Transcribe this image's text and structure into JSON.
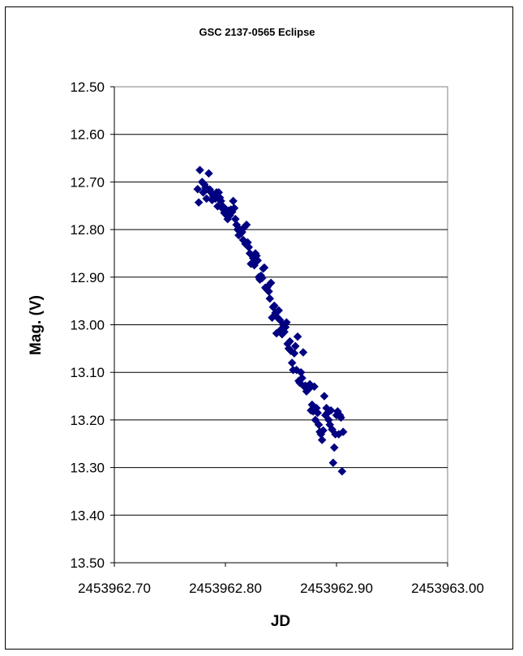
{
  "chart_data": {
    "type": "scatter",
    "title": "GSC 2137-0565 Eclipse",
    "xlabel": "JD",
    "ylabel": "Mag. (V)",
    "xlim": [
      2453962.7,
      2453963.0
    ],
    "ylim": [
      12.5,
      13.5
    ],
    "y_inverted": true,
    "grid": "horizontal major",
    "legend": "none",
    "marker": "diamond",
    "marker_color": "#000080",
    "xticks": [
      "2453962.70",
      "2453962.80",
      "2453962.90",
      "2453963.00"
    ],
    "yticks": [
      "12.50",
      "12.60",
      "12.70",
      "12.80",
      "12.90",
      "13.00",
      "13.10",
      "13.20",
      "13.30",
      "13.40",
      "13.50"
    ],
    "points": [
      [
        2453962.775,
        12.715
      ],
      [
        2453962.776,
        12.743
      ],
      [
        2453962.777,
        12.675
      ],
      [
        2453962.779,
        12.7
      ],
      [
        2453962.78,
        12.722
      ],
      [
        2453962.781,
        12.705
      ],
      [
        2453962.782,
        12.712
      ],
      [
        2453962.783,
        12.735
      ],
      [
        2453962.784,
        12.715
      ],
      [
        2453962.785,
        12.682
      ],
      [
        2453962.786,
        12.716
      ],
      [
        2453962.787,
        12.722
      ],
      [
        2453962.788,
        12.738
      ],
      [
        2453962.789,
        12.73
      ],
      [
        2453962.79,
        12.727
      ],
      [
        2453962.791,
        12.735
      ],
      [
        2453962.792,
        12.722
      ],
      [
        2453962.793,
        12.751
      ],
      [
        2453962.794,
        12.722
      ],
      [
        2453962.795,
        12.733
      ],
      [
        2453962.796,
        12.74
      ],
      [
        2453962.797,
        12.755
      ],
      [
        2453962.798,
        12.752
      ],
      [
        2453962.799,
        12.765
      ],
      [
        2453962.8,
        12.757
      ],
      [
        2453962.801,
        12.77
      ],
      [
        2453962.802,
        12.778
      ],
      [
        2453962.803,
        12.76
      ],
      [
        2453962.804,
        12.77
      ],
      [
        2453962.805,
        12.758
      ],
      [
        2453962.806,
        12.763
      ],
      [
        2453962.807,
        12.74
      ],
      [
        2453962.808,
        12.755
      ],
      [
        2453962.809,
        12.778
      ],
      [
        2453962.81,
        12.79
      ],
      [
        2453962.811,
        12.8
      ],
      [
        2453962.812,
        12.812
      ],
      [
        2453962.813,
        12.8
      ],
      [
        2453962.814,
        12.808
      ],
      [
        2453962.815,
        12.805
      ],
      [
        2453962.816,
        12.822
      ],
      [
        2453962.817,
        12.795
      ],
      [
        2453962.818,
        12.83
      ],
      [
        2453962.819,
        12.79
      ],
      [
        2453962.82,
        12.827
      ],
      [
        2453962.821,
        12.837
      ],
      [
        2453962.822,
        12.85
      ],
      [
        2453962.823,
        12.872
      ],
      [
        2453962.824,
        12.87
      ],
      [
        2453962.825,
        12.86
      ],
      [
        2453962.826,
        12.875
      ],
      [
        2453962.827,
        12.85
      ],
      [
        2453962.828,
        12.855
      ],
      [
        2453962.829,
        12.865
      ],
      [
        2453962.83,
        12.9
      ],
      [
        2453962.831,
        12.905
      ],
      [
        2453962.832,
        12.897
      ],
      [
        2453962.833,
        12.902
      ],
      [
        2453962.834,
        12.882
      ],
      [
        2453962.835,
        12.88
      ],
      [
        2453962.836,
        12.922
      ],
      [
        2453962.837,
        12.925
      ],
      [
        2453962.838,
        12.92
      ],
      [
        2453962.839,
        12.93
      ],
      [
        2453962.84,
        12.945
      ],
      [
        2453962.841,
        12.912
      ],
      [
        2453962.842,
        12.985
      ],
      [
        2453962.843,
        12.963
      ],
      [
        2453962.844,
        12.96
      ],
      [
        2453962.845,
        12.975
      ],
      [
        2453962.846,
        13.018
      ],
      [
        2453962.847,
        12.985
      ],
      [
        2453962.848,
        12.97
      ],
      [
        2453962.849,
        12.99
      ],
      [
        2453962.85,
        13.01
      ],
      [
        2453962.851,
        13.02
      ],
      [
        2453962.852,
        13.0
      ],
      [
        2453962.853,
        13.015
      ],
      [
        2453962.854,
        13.005
      ],
      [
        2453962.855,
        12.995
      ],
      [
        2453962.856,
        13.04
      ],
      [
        2453962.857,
        13.05
      ],
      [
        2453962.858,
        13.035
      ],
      [
        2453962.859,
        13.055
      ],
      [
        2453962.86,
        13.08
      ],
      [
        2453962.861,
        13.095
      ],
      [
        2453962.862,
        13.06
      ],
      [
        2453962.863,
        13.045
      ],
      [
        2453962.864,
        13.095
      ],
      [
        2453962.865,
        13.025
      ],
      [
        2453962.866,
        13.118
      ],
      [
        2453962.867,
        13.122
      ],
      [
        2453962.868,
        13.1
      ],
      [
        2453962.869,
        13.112
      ],
      [
        2453962.87,
        13.058
      ],
      [
        2453962.871,
        13.13
      ],
      [
        2453962.872,
        13.128
      ],
      [
        2453962.873,
        13.14
      ],
      [
        2453962.874,
        13.13
      ],
      [
        2453962.875,
        13.135
      ],
      [
        2453962.876,
        13.125
      ],
      [
        2453962.877,
        13.18
      ],
      [
        2453962.878,
        13.168
      ],
      [
        2453962.879,
        13.182
      ],
      [
        2453962.88,
        13.13
      ],
      [
        2453962.881,
        13.2
      ],
      [
        2453962.882,
        13.175
      ],
      [
        2453962.883,
        13.185
      ],
      [
        2453962.884,
        13.21
      ],
      [
        2453962.885,
        13.225
      ],
      [
        2453962.886,
        13.23
      ],
      [
        2453962.887,
        13.242
      ],
      [
        2453962.888,
        13.222
      ],
      [
        2453962.889,
        13.15
      ],
      [
        2453962.89,
        13.19
      ],
      [
        2453962.891,
        13.175
      ],
      [
        2453962.892,
        13.185
      ],
      [
        2453962.893,
        13.2
      ],
      [
        2453962.894,
        13.21
      ],
      [
        2453962.895,
        13.18
      ],
      [
        2453962.896,
        13.22
      ],
      [
        2453962.897,
        13.29
      ],
      [
        2453962.898,
        13.258
      ],
      [
        2453962.899,
        13.23
      ],
      [
        2453962.9,
        13.19
      ],
      [
        2453962.901,
        13.182
      ],
      [
        2453962.902,
        13.23
      ],
      [
        2453962.903,
        13.19
      ],
      [
        2453962.904,
        13.195
      ],
      [
        2453962.905,
        13.308
      ],
      [
        2453962.906,
        13.225
      ]
    ]
  }
}
